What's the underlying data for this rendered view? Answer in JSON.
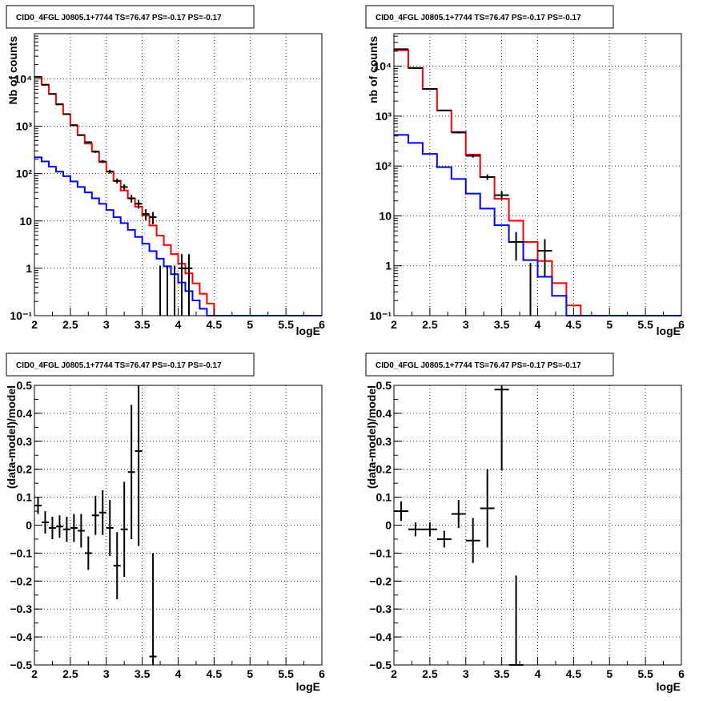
{
  "chart_data": [
    {
      "type": "line",
      "title": "CID0_4FGL J0805.1+7744 TS=76.47 PS=-0.17 PS=-0.17",
      "xlabel": "logE",
      "ylabel": "Nb of counts",
      "xlim": [
        2,
        6
      ],
      "ylim": [
        0.1,
        90000
      ],
      "yscale": "log",
      "grid": true,
      "xticks": [
        2,
        2.5,
        3,
        3.5,
        4,
        4.5,
        5,
        5.5,
        6
      ],
      "xticklabels": [
        "2",
        "2.5",
        "3",
        "3.5",
        "4",
        "4.5",
        "5",
        "5.5",
        "6"
      ],
      "yticks": [
        0.1,
        1,
        10,
        100,
        1000,
        10000
      ],
      "yticklabels": [
        "10⁻¹",
        "1",
        "10",
        "10²",
        "10³",
        "10⁴"
      ],
      "histograms": [
        {
          "color": "#ff0000",
          "edges": [
            2,
            2.1,
            2.2,
            2.3,
            2.4,
            2.5,
            2.6,
            2.7,
            2.8,
            2.9,
            3.0,
            3.1,
            3.2,
            3.3,
            3.4,
            3.5,
            3.6,
            3.7,
            3.8,
            3.9,
            4.0,
            4.1,
            4.2,
            4.3,
            4.4,
            4.5,
            4.6,
            4.7,
            4.8,
            4.9,
            5.0,
            5.1,
            5.2,
            5.3,
            5.4,
            5.5,
            5.6,
            5.7,
            5.8,
            5.9,
            6.0
          ],
          "values": [
            11000,
            7500,
            4800,
            2900,
            1800,
            1050,
            650,
            430,
            290,
            175,
            110,
            70,
            44,
            30,
            20,
            13,
            8,
            4.9,
            3.1,
            2.0,
            1.25,
            0.78,
            0.48,
            0.29,
            0.18,
            0.1,
            0.1,
            0.1,
            0.1,
            0.1,
            0.1,
            0.1,
            0.1,
            0.1,
            0.1,
            0.1,
            0.1,
            0.1,
            0.1,
            0.1
          ]
        },
        {
          "color": "#0000ff",
          "edges": [
            2,
            2.1,
            2.2,
            2.3,
            2.4,
            2.5,
            2.6,
            2.7,
            2.8,
            2.9,
            3.0,
            3.1,
            3.2,
            3.3,
            3.4,
            3.5,
            3.6,
            3.7,
            3.8,
            3.9,
            4.0,
            4.1,
            4.2,
            4.3,
            4.4,
            4.5,
            4.6,
            4.7,
            4.8,
            4.9,
            5.0,
            5.1,
            5.2,
            5.3,
            5.4,
            5.5,
            5.6,
            5.7,
            5.8,
            5.9,
            6.0
          ],
          "values": [
            220,
            180,
            140,
            110,
            88,
            68,
            52,
            40,
            30,
            23,
            17,
            12,
            9,
            6.5,
            4.6,
            3.3,
            2.3,
            1.6,
            1.1,
            0.75,
            0.5,
            0.33,
            0.21,
            0.14,
            0.1,
            0.1,
            0.1,
            0.1,
            0.1,
            0.1,
            0.1,
            0.1,
            0.1,
            0.1,
            0.1,
            0.1,
            0.1,
            0.1,
            0.1,
            0.1
          ]
        }
      ],
      "points": [
        {
          "x": 2.05,
          "y": 11000
        },
        {
          "x": 2.15,
          "y": 7500
        },
        {
          "x": 2.25,
          "y": 4800
        },
        {
          "x": 2.35,
          "y": 2900
        },
        {
          "x": 2.45,
          "y": 1800
        },
        {
          "x": 2.55,
          "y": 1050
        },
        {
          "x": 2.65,
          "y": 650
        },
        {
          "x": 2.75,
          "y": 460
        },
        {
          "x": 2.85,
          "y": 290
        },
        {
          "x": 2.95,
          "y": 180
        },
        {
          "x": 3.05,
          "y": 110
        },
        {
          "x": 3.15,
          "y": 70
        },
        {
          "x": 3.25,
          "y": 52
        },
        {
          "x": 3.35,
          "y": 30
        },
        {
          "x": 3.45,
          "y": 23
        },
        {
          "x": 3.55,
          "y": 14
        },
        {
          "x": 3.65,
          "y": 12
        },
        {
          "x": 3.75,
          "y": 0
        },
        {
          "x": 3.85,
          "y": 0
        },
        {
          "x": 3.95,
          "y": 0
        },
        {
          "x": 4.05,
          "y": 1
        },
        {
          "x": 4.15,
          "y": 1
        },
        {
          "x": 4.25,
          "y": 0
        },
        {
          "x": 4.35,
          "y": 0
        },
        {
          "x": 4.45,
          "y": 0
        }
      ],
      "point_xerr": 0.05
    },
    {
      "type": "line",
      "title": "CID0_4FGL J0805.1+7744 TS=76.47 PS=-0.17 PS=-0.17",
      "xlabel": "logE",
      "ylabel": "nb of counts",
      "xlim": [
        2,
        6
      ],
      "ylim": [
        0.1,
        45000
      ],
      "yscale": "log",
      "grid": true,
      "xticks": [
        2,
        2.5,
        3,
        3.5,
        4,
        4.5,
        5,
        5.5,
        6
      ],
      "xticklabels": [
        "2",
        "2.5",
        "3",
        "3.5",
        "4",
        "4.5",
        "5",
        "5.5",
        "6"
      ],
      "yticks": [
        0.1,
        1,
        10,
        100,
        1000,
        10000
      ],
      "yticklabels": [
        "10⁻¹",
        "1",
        "10",
        "10²",
        "10³",
        "10⁴"
      ],
      "histograms": [
        {
          "color": "#ff0000",
          "edges": [
            2,
            2.2,
            2.4,
            2.6,
            2.8,
            3.0,
            3.2,
            3.4,
            3.6,
            3.8,
            4.0,
            4.2,
            4.4,
            4.6,
            4.8,
            5.0,
            5.2,
            5.4,
            5.6,
            5.8,
            6.0
          ],
          "values": [
            21000,
            9200,
            3500,
            1300,
            480,
            170,
            60,
            22,
            8,
            3,
            1.25,
            0.45,
            0.16,
            0.1,
            0.1,
            0.1,
            0.1,
            0.1,
            0.1,
            0.1
          ]
        },
        {
          "color": "#0000ff",
          "edges": [
            2,
            2.2,
            2.4,
            2.6,
            2.8,
            3.0,
            3.2,
            3.4,
            3.6,
            3.8,
            4.0,
            4.2,
            4.4,
            4.6,
            4.8,
            5.0,
            5.2,
            5.4,
            5.6,
            5.8,
            6.0
          ],
          "values": [
            420,
            290,
            175,
            95,
            55,
            28,
            14,
            6.5,
            3,
            1.3,
            0.6,
            0.25,
            0.1,
            0.1,
            0.1,
            0.1,
            0.1,
            0.1,
            0.1,
            0.1
          ]
        }
      ],
      "points": [
        {
          "x": 2.1,
          "y": 22000
        },
        {
          "x": 2.3,
          "y": 9200
        },
        {
          "x": 2.5,
          "y": 3500
        },
        {
          "x": 2.7,
          "y": 1300
        },
        {
          "x": 2.9,
          "y": 470
        },
        {
          "x": 3.1,
          "y": 160
        },
        {
          "x": 3.3,
          "y": 60
        },
        {
          "x": 3.5,
          "y": 26
        },
        {
          "x": 3.7,
          "y": 3
        },
        {
          "x": 3.9,
          "y": 0
        },
        {
          "x": 4.1,
          "y": 2
        },
        {
          "x": 4.3,
          "y": 0
        },
        {
          "x": 4.5,
          "y": 0
        }
      ],
      "point_xerr": 0.1
    },
    {
      "type": "scatter",
      "title": "CID0_4FGL J0805.1+7744 TS=76.47 PS=-0.17 PS=-0.17",
      "xlabel": "logE",
      "ylabel": "(data-model)/model",
      "xlim": [
        2,
        6
      ],
      "ylim": [
        -0.5,
        0.5
      ],
      "yscale": "linear",
      "grid": true,
      "xticks": [
        2,
        2.5,
        3,
        3.5,
        4,
        4.5,
        5,
        5.5,
        6
      ],
      "xticklabels": [
        "2",
        "2.5",
        "3",
        "3.5",
        "4",
        "4.5",
        "5",
        "5.5",
        "6"
      ],
      "yticks": [
        -0.5,
        -0.4,
        -0.3,
        -0.2,
        -0.1,
        0,
        0.1,
        0.2,
        0.3,
        0.4,
        0.5
      ],
      "yticklabels": [
        "−0.5",
        "−0.4",
        "−0.3",
        "−0.2",
        "−0.1",
        "0",
        "0.1",
        "0.2",
        "0.3",
        "0.4",
        "0.5"
      ],
      "points": [
        {
          "x": 2.05,
          "y": 0.07,
          "err": 0.03
        },
        {
          "x": 2.15,
          "y": 0.01,
          "err": 0.04
        },
        {
          "x": 2.25,
          "y": -0.01,
          "err": 0.04
        },
        {
          "x": 2.35,
          "y": -0.005,
          "err": 0.04
        },
        {
          "x": 2.45,
          "y": -0.015,
          "err": 0.045
        },
        {
          "x": 2.55,
          "y": -0.01,
          "err": 0.05
        },
        {
          "x": 2.65,
          "y": -0.02,
          "err": 0.06
        },
        {
          "x": 2.75,
          "y": -0.1,
          "err": 0.06
        },
        {
          "x": 2.85,
          "y": 0.035,
          "err": 0.07
        },
        {
          "x": 2.95,
          "y": 0.045,
          "err": 0.08
        },
        {
          "x": 3.05,
          "y": -0.01,
          "err": 0.1
        },
        {
          "x": 3.15,
          "y": -0.145,
          "err": 0.12
        },
        {
          "x": 3.25,
          "y": -0.015,
          "err": 0.17
        },
        {
          "x": 3.35,
          "y": 0.19,
          "err": 0.24
        },
        {
          "x": 3.45,
          "y": 0.265,
          "err": 0.34
        },
        {
          "x": 3.65,
          "y": -0.47,
          "err": 0.37
        }
      ],
      "point_xerr": 0.05
    },
    {
      "type": "scatter",
      "title": "CID0_4FGL J0805.1+7744 TS=76.47 PS=-0.17 PS=-0.17",
      "xlabel": "logE",
      "ylabel": "(data-model)/model",
      "xlim": [
        2,
        6
      ],
      "ylim": [
        -0.5,
        0.5
      ],
      "yscale": "linear",
      "grid": true,
      "xticks": [
        2,
        2.5,
        3,
        3.5,
        4,
        4.5,
        5,
        5.5,
        6
      ],
      "xticklabels": [
        "2",
        "2.5",
        "3",
        "3.5",
        "4",
        "4.5",
        "5",
        "5.5",
        "6"
      ],
      "yticks": [
        -0.5,
        -0.4,
        -0.3,
        -0.2,
        -0.1,
        0,
        0.1,
        0.2,
        0.3,
        0.4,
        0.5
      ],
      "yticklabels": [
        "−0.5",
        "−0.4",
        "−0.3",
        "−0.2",
        "−0.1",
        "0",
        "0.1",
        "0.2",
        "0.3",
        "0.4",
        "0.5"
      ],
      "points": [
        {
          "x": 2.1,
          "y": 0.05,
          "err": 0.035
        },
        {
          "x": 2.3,
          "y": -0.015,
          "err": 0.025
        },
        {
          "x": 2.5,
          "y": -0.015,
          "err": 0.025
        },
        {
          "x": 2.7,
          "y": -0.05,
          "err": 0.03
        },
        {
          "x": 2.9,
          "y": 0.04,
          "err": 0.05
        },
        {
          "x": 3.1,
          "y": -0.055,
          "err": 0.08
        },
        {
          "x": 3.3,
          "y": 0.06,
          "err": 0.14
        },
        {
          "x": 3.5,
          "y": 0.485,
          "err": 0.29
        },
        {
          "x": 3.7,
          "y": -0.5,
          "err": 0.32
        }
      ],
      "point_xerr": 0.1
    }
  ]
}
